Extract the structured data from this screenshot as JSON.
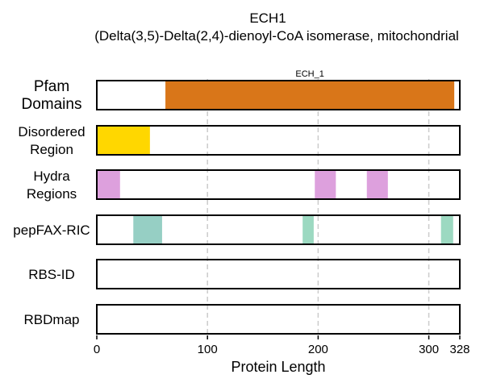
{
  "chart_data": {
    "type": "track",
    "title": "ECH1",
    "subtitle": "(Delta(3,5)-Delta(2,4)-dienoyl-CoA isomerase, mitochondrial",
    "xlabel": "Protein Length",
    "xlim": [
      0,
      328
    ],
    "xticks": [
      0,
      100,
      200,
      300,
      328
    ],
    "grid_lines": [
      100,
      200,
      300
    ],
    "tracks": [
      {
        "label_lines": [
          "Pfam",
          "Domains"
        ],
        "emphasis": true,
        "segments": [
          {
            "start": 62,
            "end": 323,
            "color": "#d97619",
            "label": "ECH_1"
          }
        ]
      },
      {
        "label_lines": [
          "Disordered",
          "Region"
        ],
        "segments": [
          {
            "start": 0,
            "end": 48,
            "color": "#ffd700"
          }
        ]
      },
      {
        "label_lines": [
          "Hydra",
          "Regions"
        ],
        "segments": [
          {
            "start": 0,
            "end": 21,
            "color": "#dda0dd"
          },
          {
            "start": 197,
            "end": 216,
            "color": "#dda0dd"
          },
          {
            "start": 244,
            "end": 263,
            "color": "#dda0dd"
          }
        ]
      },
      {
        "label_lines": [
          "pepFAX-RIC"
        ],
        "segments": [
          {
            "start": 33,
            "end": 59,
            "color": "#96cfc4"
          },
          {
            "start": 186,
            "end": 196,
            "color": "#9cd9c1"
          },
          {
            "start": 311,
            "end": 322,
            "color": "#9cd9c1"
          }
        ]
      },
      {
        "label_lines": [
          "RBS-ID"
        ],
        "segments": []
      },
      {
        "label_lines": [
          "RBDmap"
        ],
        "segments": []
      }
    ]
  }
}
